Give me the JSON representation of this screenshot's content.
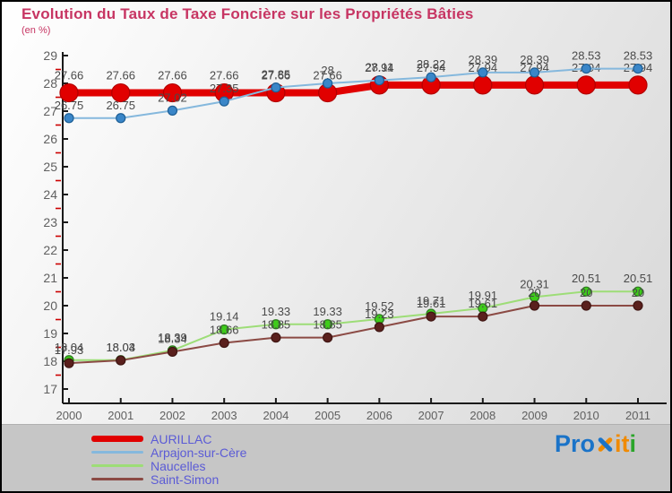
{
  "title": "Evolution du Taux de Taxe Foncière sur les Propriétés Bâties",
  "subtitle": "(en %)",
  "colors": {
    "title": "#c73563",
    "axis": "#1a1a1a",
    "tick_label": "#606060",
    "minor_tick": "#cc0000",
    "point_label": "#4a4a4a",
    "legend_text": "#5b5bd6",
    "background_band": "#c6c6c6"
  },
  "chart_data": {
    "type": "line",
    "x": [
      2000,
      2001,
      2002,
      2003,
      2004,
      2005,
      2006,
      2007,
      2008,
      2009,
      2010,
      2011
    ],
    "ylim": [
      17,
      29
    ],
    "yticks": [
      17,
      18,
      19,
      20,
      21,
      22,
      23,
      24,
      25,
      26,
      27,
      28,
      29
    ],
    "grid": false,
    "legend_position": "bottom-left",
    "series": [
      {
        "name": "AURILLAC",
        "line_color": "#e10000",
        "marker_fill": "#e10000",
        "marker_edge": "#b30000",
        "line_width": 8,
        "marker_r": 10,
        "values": [
          27.66,
          27.66,
          27.66,
          27.66,
          27.66,
          27.66,
          27.94,
          27.94,
          27.94,
          27.94,
          27.94,
          27.94
        ],
        "labels": [
          "27.66",
          "27.66",
          "27.66",
          "27.66",
          "27.66",
          "27.66",
          "27.94",
          "27.94",
          "27.94",
          "27.94",
          "27.94",
          "27.94"
        ]
      },
      {
        "name": "Arpajon-sur-Cère",
        "line_color": "#85b8dd",
        "marker_fill": "#3a86c8",
        "marker_edge": "#1d5f96",
        "line_width": 2,
        "marker_r": 5,
        "values": [
          26.75,
          26.75,
          27.02,
          27.35,
          27.85,
          28,
          28.11,
          28.22,
          28.39,
          28.39,
          28.53,
          28.53
        ],
        "labels": [
          "26.75",
          "26.75",
          "27.02",
          "27.35",
          "27.85",
          "28",
          "28.11",
          "28.22",
          "28.39",
          "28.39",
          "28.53",
          "28.53"
        ]
      },
      {
        "name": "Naucelles",
        "line_color": "#9ddd77",
        "marker_fill": "#3ecc1a",
        "marker_edge": "#2d7a1f",
        "line_width": 2,
        "marker_r": 5,
        "values": [
          18.04,
          18.04,
          18.39,
          19.14,
          19.33,
          19.33,
          19.52,
          19.71,
          19.91,
          20.31,
          20.51,
          20.51
        ],
        "labels": [
          "18.04",
          "18.04",
          "18.39",
          "19.14",
          "19.33",
          "19.33",
          "19.52",
          "19.71",
          "19.91",
          "20.31",
          "20.51",
          "20.51"
        ]
      },
      {
        "name": "Saint-Simon",
        "line_color": "#8b4a44",
        "marker_fill": "#5a201d",
        "marker_edge": "#3f1512",
        "line_width": 2,
        "marker_r": 5,
        "values": [
          17.93,
          18.03,
          18.34,
          18.66,
          18.85,
          18.85,
          19.23,
          19.61,
          19.61,
          20,
          20,
          20
        ],
        "labels": [
          "17.93",
          "18.03",
          "18.34",
          "18.66",
          "18.85",
          "18.85",
          "19.23",
          "19.61",
          "19.61",
          "20",
          "20",
          "20"
        ]
      }
    ]
  },
  "legend": {
    "items": [
      {
        "label": "AURILLAC",
        "color": "#e10000",
        "thickness": 7
      },
      {
        "label": "Arpajon-sur-Cère",
        "color": "#85b8dd",
        "thickness": 3
      },
      {
        "label": "Naucelles",
        "color": "#9ddd77",
        "thickness": 3
      },
      {
        "label": "Saint-Simon",
        "color": "#8b4a44",
        "thickness": 3
      }
    ]
  },
  "logo": {
    "pro": "Pro",
    "it": "it",
    "i2": "i"
  }
}
